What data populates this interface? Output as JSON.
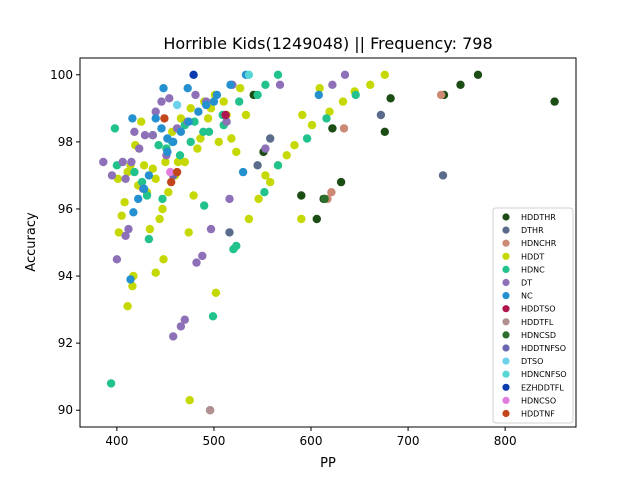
{
  "chart_data": {
    "type": "scatter",
    "title": "Horrible Kids(1249048) || Frequency: 798",
    "xlabel": "PP",
    "ylabel": "Accuracy",
    "xlim": [
      362,
      873
    ],
    "ylim": [
      89.5,
      100.5
    ],
    "xticks": [
      400,
      500,
      600,
      700,
      800
    ],
    "yticks": [
      90,
      92,
      94,
      96,
      98,
      100
    ],
    "legend_position": "lower-right",
    "series": [
      {
        "name": "HDDTHR",
        "color": "#1b4d14",
        "points": [
          [
            772,
            100.0
          ],
          [
            754,
            99.7
          ],
          [
            737,
            99.4
          ],
          [
            851,
            99.2
          ],
          [
            682,
            99.3
          ],
          [
            676,
            98.3
          ],
          [
            622,
            98.4
          ],
          [
            631,
            96.8
          ],
          [
            590,
            96.4
          ],
          [
            613,
            96.3
          ],
          [
            606,
            95.7
          ],
          [
            541,
            99.4
          ],
          [
            551,
            97.7
          ]
        ]
      },
      {
        "name": "DTHR",
        "color": "#5a6b8c",
        "points": [
          [
            736,
            97.0
          ],
          [
            672,
            98.8
          ],
          [
            516,
            95.3
          ],
          [
            545,
            97.3
          ],
          [
            558,
            98.1
          ]
        ]
      },
      {
        "name": "HDNCHR",
        "color": "#cc8a74",
        "points": [
          [
            734,
            99.4
          ],
          [
            634,
            98.4
          ],
          [
            621,
            96.5
          ],
          [
            617,
            96.3
          ]
        ]
      },
      {
        "name": "HDDT",
        "color": "#c5d800",
        "points": [
          [
            676,
            100.0
          ],
          [
            661,
            99.7
          ],
          [
            645,
            99.5
          ],
          [
            633,
            99.2
          ],
          [
            619,
            98.9
          ],
          [
            609,
            99.6
          ],
          [
            601,
            98.5
          ],
          [
            591,
            98.8
          ],
          [
            583,
            97.9
          ],
          [
            575,
            97.6
          ],
          [
            566,
            97.3
          ],
          [
            558,
            96.8
          ],
          [
            553,
            97.0
          ],
          [
            546,
            96.3
          ],
          [
            536,
            95.7
          ],
          [
            533,
            98.8
          ],
          [
            527,
            99.6
          ],
          [
            523,
            97.7
          ],
          [
            518,
            98.1
          ],
          [
            513,
            98.8
          ],
          [
            510,
            99.2
          ],
          [
            505,
            98.0
          ],
          [
            501,
            99.4
          ],
          [
            497,
            99.0
          ],
          [
            494,
            98.7
          ],
          [
            490,
            99.2
          ],
          [
            486,
            98.1
          ],
          [
            483,
            97.8
          ],
          [
            479,
            96.4
          ],
          [
            476,
            99.0
          ],
          [
            473,
            98.6
          ],
          [
            470,
            97.4
          ],
          [
            466,
            98.7
          ],
          [
            463,
            97.4
          ],
          [
            460,
            97.0
          ],
          [
            457,
            98.3
          ],
          [
            453,
            96.5
          ],
          [
            450,
            97.4
          ],
          [
            447,
            96.0
          ],
          [
            444,
            95.7
          ],
          [
            440,
            96.9
          ],
          [
            437,
            97.2
          ],
          [
            434,
            95.4
          ],
          [
            431,
            96.5
          ],
          [
            428,
            97.3
          ],
          [
            425,
            98.6
          ],
          [
            422,
            96.7
          ],
          [
            419,
            97.9
          ],
          [
            416,
            93.7
          ],
          [
            414,
            97.3
          ],
          [
            411,
            97.1
          ],
          [
            408,
            96.2
          ],
          [
            405,
            95.8
          ],
          [
            402,
            95.3
          ],
          [
            401,
            96.9
          ],
          [
            411,
            93.1
          ],
          [
            417,
            94.0
          ],
          [
            440,
            94.1
          ],
          [
            448,
            94.5
          ],
          [
            474,
            95.3
          ],
          [
            502,
            93.5
          ],
          [
            475,
            90.3
          ],
          [
            590,
            95.7
          ]
        ]
      },
      {
        "name": "HDNC",
        "color": "#22c28d",
        "points": [
          [
            566,
            100.0
          ],
          [
            553,
            99.7
          ],
          [
            545,
            99.4
          ],
          [
            526,
            99.2
          ],
          [
            509,
            98.8
          ],
          [
            489,
            98.3
          ],
          [
            476,
            98.0
          ],
          [
            465,
            97.6
          ],
          [
            457,
            98.0
          ],
          [
            451,
            97.8
          ],
          [
            443,
            97.9
          ],
          [
            437,
            98.2
          ],
          [
            431,
            96.4
          ],
          [
            426,
            96.8
          ],
          [
            418,
            97.1
          ],
          [
            398,
            98.4
          ],
          [
            394,
            90.8
          ],
          [
            400,
            97.3
          ],
          [
            433,
            95.1
          ],
          [
            447,
            96.3
          ],
          [
            490,
            96.1
          ],
          [
            499,
            92.8
          ],
          [
            520,
            94.8
          ],
          [
            552,
            96.5
          ],
          [
            566,
            97.3
          ],
          [
            596,
            98.1
          ],
          [
            616,
            98.7
          ],
          [
            646,
            99.4
          ],
          [
            470,
            98.5
          ],
          [
            480,
            98.6
          ],
          [
            495,
            98.3
          ],
          [
            510,
            98.5
          ],
          [
            523,
            94.9
          ]
        ]
      },
      {
        "name": "DT",
        "color": "#8d70b8",
        "points": [
          [
            635,
            100.0
          ],
          [
            622,
            99.7
          ],
          [
            568,
            99.7
          ],
          [
            553,
            97.8
          ],
          [
            519,
            99.7
          ],
          [
            513,
            98.6
          ],
          [
            492,
            99.2
          ],
          [
            481,
            99.4
          ],
          [
            473,
            98.6
          ],
          [
            462,
            98.4
          ],
          [
            454,
            99.3
          ],
          [
            446,
            99.2
          ],
          [
            440,
            98.9
          ],
          [
            437,
            98.2
          ],
          [
            429,
            98.2
          ],
          [
            423,
            97.8
          ],
          [
            418,
            98.3
          ],
          [
            415,
            97.4
          ],
          [
            409,
            96.9
          ],
          [
            406,
            97.4
          ],
          [
            395,
            97.0
          ],
          [
            386,
            97.4
          ],
          [
            409,
            95.2
          ],
          [
            412,
            95.4
          ],
          [
            400,
            94.5
          ],
          [
            427,
            96.6
          ],
          [
            451,
            97.6
          ],
          [
            470,
            92.7
          ],
          [
            466,
            92.5
          ],
          [
            458,
            92.2
          ],
          [
            482,
            94.4
          ],
          [
            488,
            94.6
          ],
          [
            497,
            95.4
          ],
          [
            516,
            96.3
          ],
          [
            496,
            90.0
          ]
        ]
      },
      {
        "name": "NC",
        "color": "#2490cf",
        "points": [
          [
            533,
            100.0
          ],
          [
            517,
            99.7
          ],
          [
            503,
            99.4
          ],
          [
            492,
            99.1
          ],
          [
            484,
            98.9
          ],
          [
            474,
            98.6
          ],
          [
            466,
            98.3
          ],
          [
            458,
            98.0
          ],
          [
            452,
            97.7
          ],
          [
            446,
            98.4
          ],
          [
            440,
            98.7
          ],
          [
            433,
            97.0
          ],
          [
            428,
            96.6
          ],
          [
            422,
            96.3
          ],
          [
            417,
            95.9
          ],
          [
            416,
            98.7
          ],
          [
            414,
            93.9
          ],
          [
            448,
            99.6
          ],
          [
            473,
            99.6
          ],
          [
            500,
            99.2
          ],
          [
            530,
            97.1
          ],
          [
            608,
            99.4
          ],
          [
            452,
            98.1
          ]
        ]
      },
      {
        "name": "HDDTSO",
        "color": "#b0154d",
        "points": [
          [
            512,
            98.8
          ]
        ]
      },
      {
        "name": "HDDTFL",
        "color": "#b29090",
        "points": [
          [
            496,
            90.0
          ]
        ]
      },
      {
        "name": "HDNCSD",
        "color": "#2c6e2c",
        "points": [
          [
            614,
            96.3
          ]
        ]
      },
      {
        "name": "HDDTNFSO",
        "color": "#6b66b0",
        "points": [
          [
            458,
            97.0
          ]
        ]
      },
      {
        "name": "DTSO",
        "color": "#6cd1ea",
        "points": [
          [
            462,
            99.1
          ]
        ]
      },
      {
        "name": "HDNCNFSO",
        "color": "#56d6d6",
        "points": [
          [
            536,
            100.0
          ]
        ]
      },
      {
        "name": "EZHDDTFL",
        "color": "#0a3cb0",
        "points": [
          [
            479,
            100.0
          ]
        ]
      },
      {
        "name": "HDNCSO",
        "color": "#e07ee0",
        "points": [
          [
            455,
            97.1
          ]
        ]
      },
      {
        "name": "HDDTNF",
        "color": "#c2451c",
        "points": [
          [
            449,
            98.7
          ],
          [
            462,
            97.1
          ],
          [
            456,
            96.8
          ]
        ]
      }
    ]
  }
}
